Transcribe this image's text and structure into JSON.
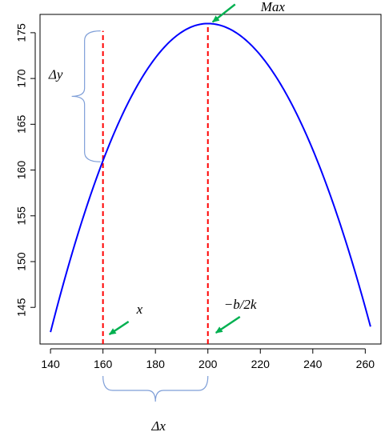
{
  "chart_data": {
    "type": "line",
    "title": "",
    "xlabel": "",
    "ylabel": "",
    "xlim": [
      136,
      266
    ],
    "ylim": [
      141,
      177
    ],
    "x_ticks": [
      140,
      160,
      180,
      200,
      220,
      240,
      260
    ],
    "y_ticks": [
      145,
      150,
      155,
      160,
      165,
      170,
      175
    ],
    "grid": false,
    "series": [
      {
        "color": "#0000ff",
        "function": "quadratic",
        "vertex": [
          200,
          176
        ],
        "points": [
          [
            140,
            142.3
          ],
          [
            160,
            160.9
          ],
          [
            180,
            172.2
          ],
          [
            200,
            176.0
          ],
          [
            220,
            172.2
          ],
          [
            240,
            160.9
          ],
          [
            262,
            142.9
          ]
        ]
      }
    ],
    "reference_lines": [
      {
        "type": "vertical",
        "x": 160,
        "y_from": 141,
        "y_to": 175.2,
        "color": "#ff0000",
        "style": "dashed"
      },
      {
        "type": "vertical",
        "x": 200,
        "y_from": 141,
        "y_to": 176,
        "color": "#ff0000",
        "style": "dashed"
      }
    ],
    "annotations": {
      "max_label": "Max",
      "dy_label": "Δy",
      "dx_label": "Δx",
      "x_label": "x",
      "vertex_label": "−b/2k",
      "arrow_color": "#00b050",
      "brace_color": "#7f9fd8"
    }
  }
}
